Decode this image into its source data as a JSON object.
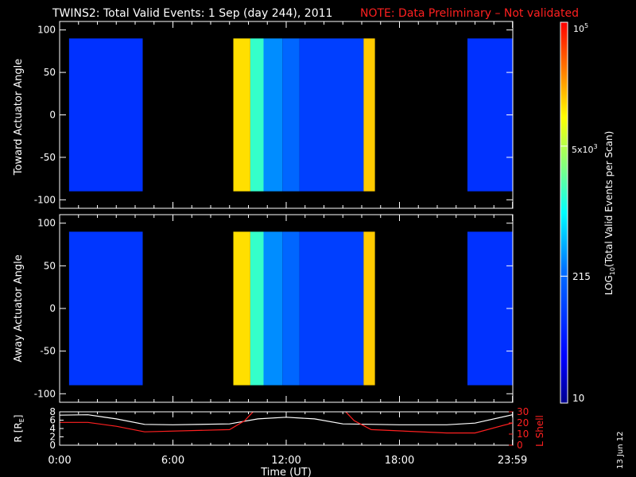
{
  "title": "TWINS2: Total Valid Events:  1 Sep (day 244), 2011",
  "note": "NOTE: Data Preliminary – Not validated",
  "date_stamp": "13 Jun 12",
  "colors": {
    "note": "#ff2020",
    "lshell": "#ff2020",
    "rline": "#ffffff",
    "background": "#000000"
  },
  "chart_data": [
    {
      "type": "heatmap",
      "ylabel": "Toward Actuator Angle",
      "ylim": [
        -110,
        110
      ],
      "yticks": [
        100,
        50,
        0,
        -50,
        -100
      ],
      "data_y_range": [
        -90,
        90
      ],
      "xlim": [
        0,
        24
      ],
      "intensity_profile": [
        {
          "t0": 0.5,
          "t1": 4.4,
          "level": 0.22
        },
        {
          "t0": 9.2,
          "t1": 10.1,
          "level": 0.78
        },
        {
          "t0": 10.1,
          "t1": 10.8,
          "level": 0.55
        },
        {
          "t0": 10.8,
          "t1": 11.8,
          "level": 0.38
        },
        {
          "t0": 11.8,
          "t1": 12.7,
          "level": 0.33
        },
        {
          "t0": 12.7,
          "t1": 16.1,
          "level": 0.25
        },
        {
          "t0": 16.1,
          "t1": 16.7,
          "level": 0.8
        },
        {
          "t0": 21.6,
          "t1": 24.0,
          "level": 0.22
        }
      ]
    },
    {
      "type": "heatmap",
      "ylabel": "Away Actuator Angle",
      "ylim": [
        -110,
        110
      ],
      "yticks": [
        100,
        50,
        0,
        -50,
        -100
      ],
      "data_y_range": [
        -90,
        90
      ],
      "xlim": [
        0,
        24
      ],
      "intensity_profile": [
        {
          "t0": 0.5,
          "t1": 4.4,
          "level": 0.23
        },
        {
          "t0": 9.2,
          "t1": 10.1,
          "level": 0.78
        },
        {
          "t0": 10.1,
          "t1": 10.8,
          "level": 0.55
        },
        {
          "t0": 10.8,
          "t1": 11.8,
          "level": 0.38
        },
        {
          "t0": 11.8,
          "t1": 12.7,
          "level": 0.33
        },
        {
          "t0": 12.7,
          "t1": 16.1,
          "level": 0.25
        },
        {
          "t0": 16.1,
          "t1": 16.7,
          "level": 0.8
        },
        {
          "t0": 21.6,
          "t1": 24.0,
          "level": 0.22
        }
      ]
    },
    {
      "type": "line",
      "ylabel_left": "R [R",
      "ylabel_left_sub": "E",
      "ylabel_left_end": "]",
      "ylabel_right": "L Shell",
      "xlabel": "Time (UT)",
      "xlim": [
        0,
        24
      ],
      "ylim_left": [
        0,
        8
      ],
      "yticks_left": [
        0,
        2,
        4,
        6,
        8
      ],
      "ylim_right": [
        0,
        30
      ],
      "yticks_right": [
        0,
        10,
        20,
        30
      ],
      "xticks": [
        0,
        6,
        12,
        18,
        23.983
      ],
      "xtick_labels": [
        "0:00",
        "6:00",
        "12:00",
        "18:00",
        "23:59"
      ],
      "series": [
        {
          "axis": "left",
          "color": "#ffffff",
          "x": [
            0,
            1.5,
            3,
            4.5,
            6,
            9,
            10.5,
            12,
            13.5,
            15,
            18,
            20.5,
            22,
            23.983
          ],
          "y": [
            7.2,
            7.3,
            6.3,
            5.0,
            4.9,
            5.1,
            6.3,
            6.7,
            6.3,
            5.1,
            4.9,
            4.9,
            5.3,
            7.3
          ]
        },
        {
          "axis": "right",
          "color": "#ff2020",
          "x": [
            0,
            1.5,
            3,
            4.5,
            9,
            9.8,
            10.3,
            15.1,
            15.6,
            16.5,
            20.5,
            22,
            23.983
          ],
          "y": [
            20.5,
            20.5,
            17,
            12,
            14,
            22,
            31,
            31,
            22,
            14,
            11,
            11,
            20
          ]
        }
      ]
    },
    {
      "type": "heatmap",
      "ylabel": "LOG10(Total Valid Events per Scan)",
      "colorbar": true,
      "tick_labels": [
        "10",
        "215",
        "5x10^3",
        "10^5"
      ],
      "tick_values": [
        1,
        2.333,
        3.699,
        5
      ],
      "range": [
        1,
        5
      ]
    }
  ],
  "colorbar": {
    "label_pre": "LOG",
    "label_sub": "10",
    "label_post": "(Total Valid Events per Scan)",
    "tick_10": "10",
    "tick_215": "215",
    "tick_5e3_base": "5x10",
    "tick_5e3_exp": "3",
    "tick_1e5_base": "10",
    "tick_1e5_exp": "5"
  }
}
